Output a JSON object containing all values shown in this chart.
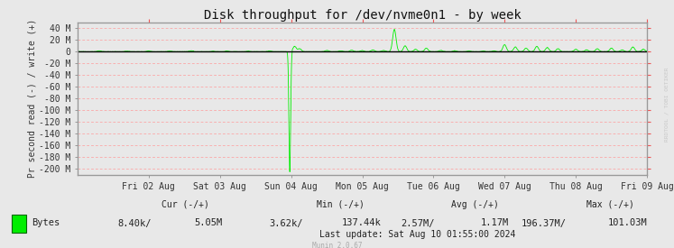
{
  "title": "Disk throughput for /dev/nvme0n1 - by week",
  "ylabel": "Pr second read (-) / write (+)",
  "background_color": "#E8E8E8",
  "plot_bg_color": "#E8E8E8",
  "grid_color": "#FF9999",
  "grid_style": "--",
  "line_color": "#00EE00",
  "zero_line_color": "#000000",
  "border_color": "#AAAAAA",
  "yticks_M": [
    40,
    20,
    0,
    -20,
    -40,
    -60,
    -80,
    -100,
    -120,
    -140,
    -160,
    -180,
    -200
  ],
  "ytick_labels": [
    "40 M",
    "20 M",
    "0",
    "-20 M",
    "-40 M",
    "-60 M",
    "-80 M",
    "-100 M",
    "-120 M",
    "-140 M",
    "-160 M",
    "-180 M",
    "-200 M"
  ],
  "ylim_M": [
    -210,
    50
  ],
  "xtick_positions": [
    1,
    2,
    3,
    4,
    5,
    6,
    7,
    8
  ],
  "xtick_labels": [
    "Fri 02 Aug",
    "Sat 03 Aug",
    "Sun 04 Aug",
    "Mon 05 Aug",
    "Tue 06 Aug",
    "Wed 07 Aug",
    "Thu 08 Aug",
    "Fri 09 Aug"
  ],
  "cur_label": "Cur (-/+)",
  "min_label": "Min (-/+)",
  "avg_label": "Avg (-/+)",
  "max_label": "Max (-/+)",
  "cur_neg": "8.40k/",
  "cur_pos": "5.05M",
  "min_neg": "3.62k/",
  "min_pos": "137.44k",
  "avg_neg": "2.57M/",
  "avg_pos": "1.17M",
  "max_neg": "196.37M/",
  "max_pos": "101.03M",
  "bytes_label": "Bytes",
  "last_update": "Last update: Sat Aug 10 01:55:00 2024",
  "munin_label": "Munin 2.0.67",
  "watermark": "RRDTOOL / TOBI OETIKER",
  "title_fontsize": 10,
  "tick_fontsize": 7,
  "footer_fontsize": 7.5,
  "watermark_color": "#C8C8C8"
}
